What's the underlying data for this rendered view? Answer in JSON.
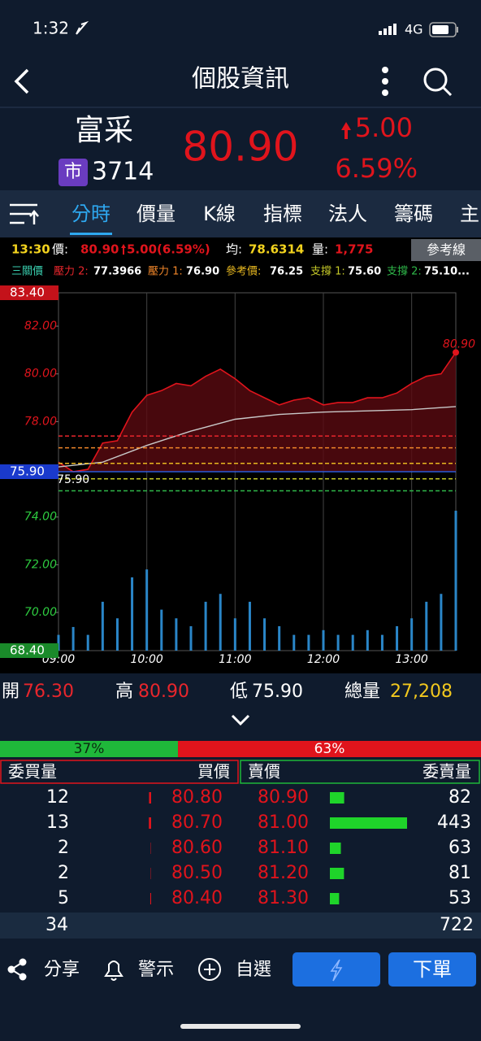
{
  "status_bar": {
    "time": "1:32",
    "network": "4G"
  },
  "header": {
    "title": "個股資訊"
  },
  "stock": {
    "name": "富采",
    "market": "市",
    "code": "3714",
    "price": "80.90",
    "change": "5.00",
    "change_pct": "6.59%"
  },
  "tabs": [
    "分時",
    "價量",
    "K線",
    "指標",
    "法人",
    "籌碼",
    "主"
  ],
  "info": {
    "time": "13:30",
    "price_label": "價:",
    "price": "80.90",
    "change": "5.00(6.59%)",
    "avg_label": "均:",
    "avg": "78.6314",
    "vol_label": "量:",
    "vol": "1,775",
    "ref_button": "參考線"
  },
  "chart_data": {
    "type": "line",
    "levels_title": "三關價",
    "levels": [
      {
        "name": "壓力 2:",
        "value": 77.3966,
        "label": "77.3966",
        "color": "#e8262c"
      },
      {
        "name": "壓力 1:",
        "value": 76.9,
        "label": "76.90",
        "color": "#f0862a"
      },
      {
        "name": "參考價:",
        "value": 76.25,
        "label": "76.25",
        "color": "#e8b820"
      },
      {
        "name": "支撐 1:",
        "value": 75.6,
        "label": "75.60",
        "color": "#c4c828"
      },
      {
        "name": "支撐 2:",
        "value": 75.1,
        "label": "75.10...",
        "color": "#2fb84a"
      }
    ],
    "ylim": [
      68.4,
      83.4
    ],
    "yticks": [
      {
        "value": 83.4,
        "label": "83.40"
      },
      {
        "value": 82,
        "label": "82.00"
      },
      {
        "value": 80,
        "label": "80.00"
      },
      {
        "value": 78,
        "label": "78.00"
      },
      {
        "value": 74,
        "label": "74.00"
      },
      {
        "value": 72,
        "label": "72.00"
      },
      {
        "value": 70,
        "label": "70.00"
      },
      {
        "value": 68.4,
        "label": "68.40"
      }
    ],
    "prev_close": {
      "value": 75.9,
      "label": "75.90"
    },
    "xlim": [
      "09:00",
      "13:30"
    ],
    "xticks": [
      "09:00",
      "10:00",
      "11:00",
      "12:00",
      "13:00"
    ],
    "series": [
      {
        "color": "#e0141c",
        "fill": "#5a0a10",
        "x": [
          "09:00",
          "09:10",
          "09:20",
          "09:30",
          "09:40",
          "09:50",
          "10:00",
          "10:10",
          "10:20",
          "10:30",
          "10:40",
          "10:50",
          "11:00",
          "11:10",
          "11:20",
          "11:30",
          "11:40",
          "11:50",
          "12:00",
          "12:10",
          "12:20",
          "12:30",
          "12:40",
          "12:50",
          "13:00",
          "13:10",
          "13:20",
          "13:30"
        ],
        "values": [
          76.3,
          75.9,
          76.0,
          77.1,
          77.2,
          78.4,
          79.1,
          79.3,
          79.6,
          79.5,
          79.9,
          80.2,
          79.8,
          79.3,
          79.0,
          78.7,
          78.9,
          79.0,
          78.7,
          78.8,
          78.8,
          79.0,
          79.0,
          79.2,
          79.6,
          79.9,
          80.0,
          80.9
        ]
      },
      {
        "color": "#c8c8c8",
        "x": [
          "09:00",
          "09:30",
          "10:00",
          "10:30",
          "11:00",
          "11:30",
          "12:00",
          "12:30",
          "13:00",
          "13:30"
        ],
        "values": [
          76.1,
          76.3,
          77.0,
          77.6,
          78.1,
          78.3,
          78.4,
          78.45,
          78.5,
          78.63
        ]
      }
    ],
    "low": {
      "value": 75.9,
      "label": "75.90"
    },
    "last": {
      "value": 80.9,
      "label": "80.90"
    },
    "volume": {
      "color": "#2a86c8",
      "ylim": [
        0,
        4540
      ],
      "x": [
        "09:00",
        "09:10",
        "09:20",
        "09:30",
        "09:40",
        "09:50",
        "10:00",
        "10:10",
        "10:20",
        "10:30",
        "10:40",
        "10:50",
        "11:00",
        "11:10",
        "11:20",
        "11:30",
        "11:40",
        "11:50",
        "12:00",
        "12:10",
        "12:20",
        "12:30",
        "12:40",
        "12:50",
        "13:00",
        "13:10",
        "13:20",
        "13:30"
      ],
      "values": [
        200,
        300,
        200,
        620,
        410,
        930,
        1030,
        520,
        410,
        310,
        620,
        720,
        410,
        620,
        410,
        310,
        200,
        200,
        260,
        200,
        200,
        260,
        200,
        310,
        410,
        620,
        720,
        1775
      ]
    }
  },
  "stats": [
    {
      "label": "開",
      "value": "76.30",
      "color": "#e8262c"
    },
    {
      "label": "高",
      "value": "80.90",
      "color": "#e8262c"
    },
    {
      "label": "低",
      "value": "75.90",
      "color": "#ffffff"
    },
    {
      "label": "總量",
      "value": "27,208",
      "color": "#f2c81e"
    }
  ],
  "ratio": {
    "buy": {
      "value": 37,
      "label": "37%"
    },
    "sell": {
      "value": 63,
      "label": "63%"
    }
  },
  "order_book": {
    "headers": [
      "委買量",
      "買價",
      "賣價",
      "委賣量"
    ],
    "rows": [
      {
        "buy_vol": 12,
        "bid": "80.80",
        "ask": "80.90",
        "sell_vol": 82
      },
      {
        "buy_vol": 13,
        "bid": "80.70",
        "ask": "81.00",
        "sell_vol": 443
      },
      {
        "buy_vol": 2,
        "bid": "80.60",
        "ask": "81.10",
        "sell_vol": 63
      },
      {
        "buy_vol": 2,
        "bid": "80.50",
        "ask": "81.20",
        "sell_vol": 81
      },
      {
        "buy_vol": 5,
        "bid": "80.40",
        "ask": "81.30",
        "sell_vol": 53
      }
    ],
    "totals": {
      "buy": 34,
      "sell": 722
    }
  },
  "toolbar": {
    "share": "分享",
    "alert": "警示",
    "watch": "自選",
    "order": "下單"
  }
}
